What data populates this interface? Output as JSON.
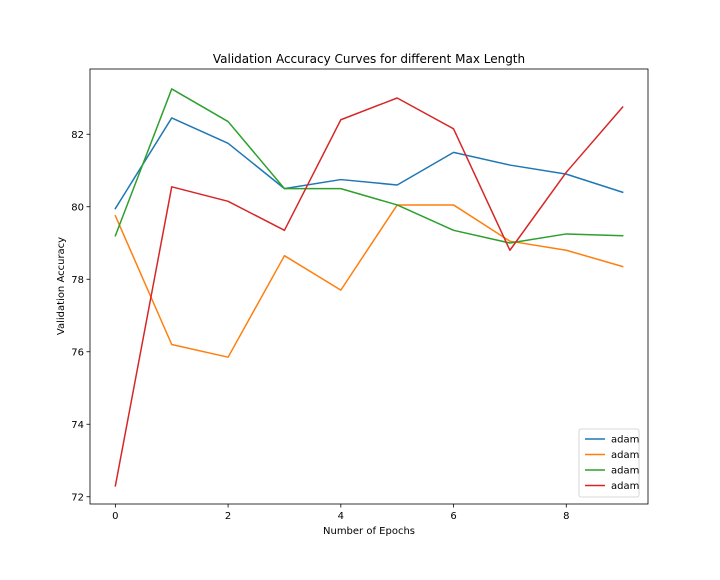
{
  "chart_data": {
    "type": "line",
    "title": "Validation Accuracy Curves for different Max Length",
    "xlabel": "Number of Epochs",
    "ylabel": "Validation Accuracy",
    "x": [
      0,
      1,
      2,
      3,
      4,
      5,
      6,
      7,
      8,
      9
    ],
    "xlim": [
      -0.45,
      9.45
    ],
    "ylim": [
      71.8,
      83.8
    ],
    "xticks": [
      0,
      2,
      4,
      6,
      8
    ],
    "xtick_labels": [
      "0",
      "2",
      "4",
      "6",
      "8"
    ],
    "yticks": [
      72,
      74,
      76,
      78,
      80,
      82
    ],
    "ytick_labels": [
      "72",
      "74",
      "76",
      "78",
      "80",
      "82"
    ],
    "grid": false,
    "legend_position": "lower-right",
    "series": [
      {
        "name": "adam",
        "color": "#1f77b4",
        "values": [
          79.95,
          82.45,
          81.75,
          80.5,
          80.75,
          80.6,
          81.5,
          81.15,
          80.9,
          80.4
        ]
      },
      {
        "name": "adam",
        "color": "#ff7f0e",
        "values": [
          79.75,
          76.2,
          75.85,
          78.65,
          77.7,
          80.05,
          80.05,
          79.05,
          78.8,
          78.35
        ]
      },
      {
        "name": "adam",
        "color": "#2ca02c",
        "values": [
          79.2,
          83.25,
          82.35,
          80.5,
          80.5,
          80.05,
          79.35,
          79.0,
          79.25,
          79.2
        ]
      },
      {
        "name": "adam",
        "color": "#d62728",
        "values": [
          72.3,
          80.55,
          80.15,
          79.35,
          82.4,
          83.0,
          82.15,
          78.8,
          80.95,
          82.75
        ]
      }
    ]
  }
}
